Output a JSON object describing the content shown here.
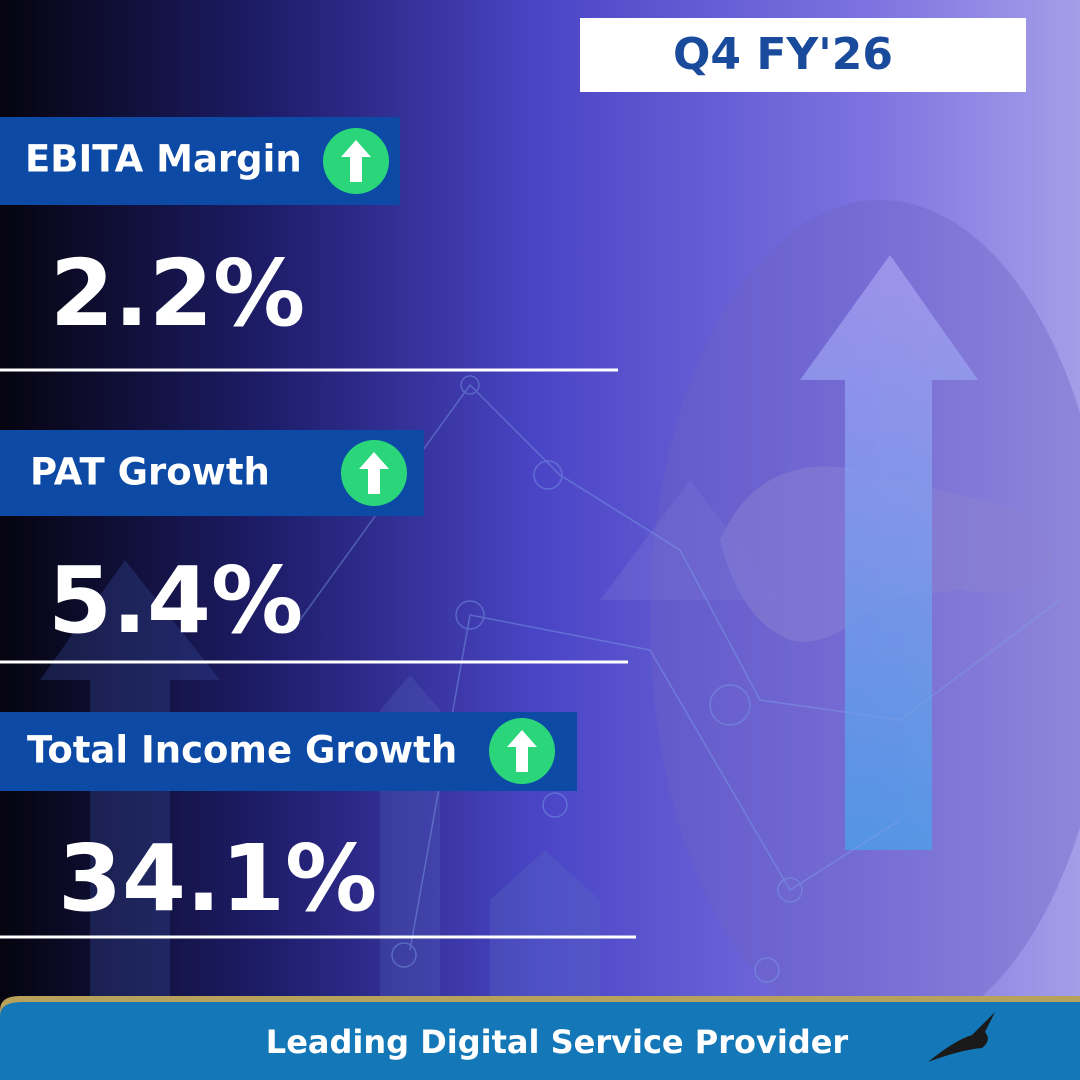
{
  "header": {
    "badge": "Q4 FY'26"
  },
  "metrics": [
    {
      "label": "EBITA Margin",
      "value": "2.2%"
    },
    {
      "label": "PAT Growth",
      "value": "5.4%"
    },
    {
      "label": "Total Income Growth",
      "value": "34.1%"
    }
  ],
  "footer": {
    "tagline": "Leading Digital Service Provider"
  }
}
